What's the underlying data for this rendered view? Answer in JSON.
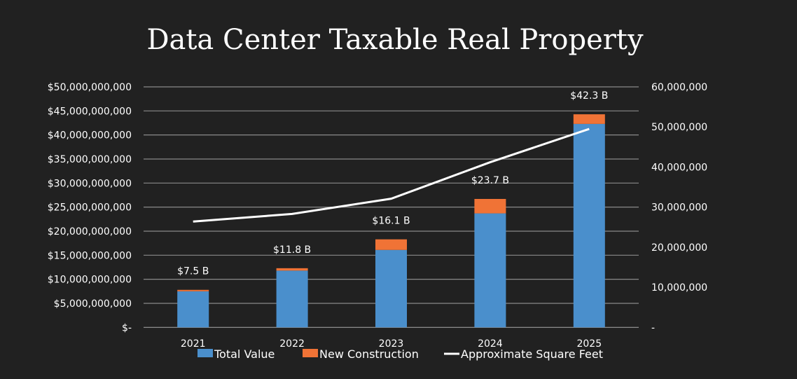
{
  "chart_data": {
    "type": "bar",
    "title": "Data Center Taxable Real Property",
    "categories": [
      "2021",
      "2022",
      "2023",
      "2024",
      "2025"
    ],
    "series": [
      {
        "name": "Total Value",
        "kind": "bar-stacked",
        "axis": "left",
        "color": "#4a8fcc",
        "values": [
          7500000000,
          11800000000,
          16100000000,
          23700000000,
          42300000000
        ]
      },
      {
        "name": "New Construction",
        "kind": "bar-stacked",
        "axis": "left",
        "color": "#f07336",
        "values": [
          300000000,
          500000000,
          2200000000,
          3000000000,
          2000000000
        ]
      },
      {
        "name": "Approximate Square Feet",
        "kind": "line",
        "axis": "right",
        "color": "#ffffff",
        "values": [
          26400000,
          28300000,
          32100000,
          41200000,
          49500000
        ]
      }
    ],
    "data_labels": [
      "$7.5 B",
      "$11.8 B",
      "$16.1 B",
      "$23.7 B",
      "$42.3 B"
    ],
    "ylim_left": [
      0,
      50000000000
    ],
    "ylim_right": [
      0,
      60000000
    ],
    "left_ticks": [
      "$-",
      "$5,000,000,000",
      "$10,000,000,000",
      "$15,000,000,000",
      "$20,000,000,000",
      "$25,000,000,000",
      "$30,000,000,000",
      "$35,000,000,000",
      "$40,000,000,000",
      "$45,000,000,000",
      "$50,000,000,000"
    ],
    "right_ticks": [
      "-",
      "10,000,000",
      "20,000,000",
      "30,000,000",
      "40,000,000",
      "50,000,000",
      "60,000,000"
    ],
    "grid": true,
    "legend_position": "bottom"
  }
}
